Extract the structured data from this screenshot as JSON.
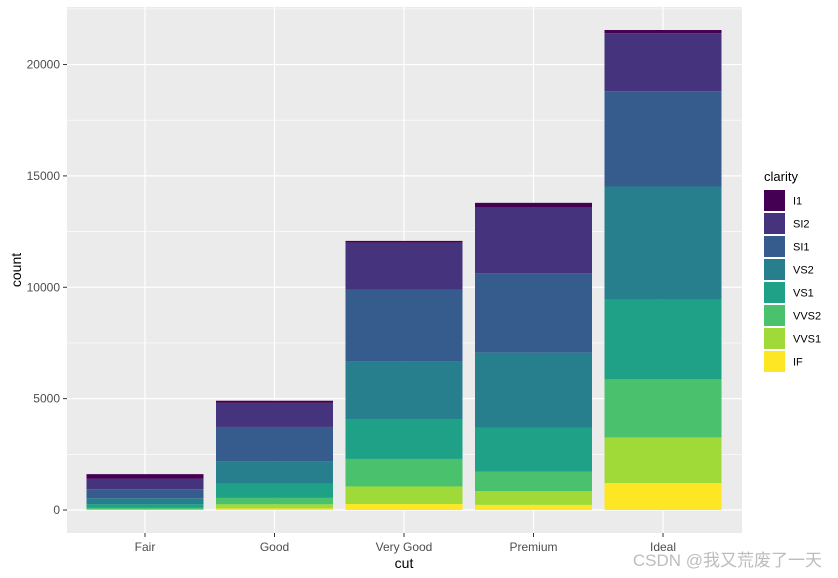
{
  "chart_data": {
    "type": "bar",
    "stacked": true,
    "title": "",
    "xlabel": "cut",
    "ylabel": "count",
    "ylim": [
      0,
      21551
    ],
    "y_ticks": [
      0,
      5000,
      10000,
      15000,
      20000
    ],
    "grid": true,
    "legend": {
      "title": "clarity",
      "placement": "right"
    },
    "categories": [
      "Fair",
      "Good",
      "Very Good",
      "Premium",
      "Ideal"
    ],
    "series": [
      {
        "name": "I1",
        "color": "#440154",
        "values": [
          210,
          96,
          84,
          205,
          146
        ]
      },
      {
        "name": "SI2",
        "color": "#46337E",
        "values": [
          466,
          1081,
          2100,
          2949,
          2598
        ]
      },
      {
        "name": "SI1",
        "color": "#365C8D",
        "values": [
          408,
          1560,
          3240,
          3575,
          4282
        ]
      },
      {
        "name": "VS2",
        "color": "#277F8E",
        "values": [
          261,
          978,
          2591,
          3357,
          5071
        ]
      },
      {
        "name": "VS1",
        "color": "#1FA187",
        "values": [
          170,
          648,
          1775,
          1989,
          3589
        ]
      },
      {
        "name": "VVS2",
        "color": "#4AC16D",
        "values": [
          69,
          286,
          1235,
          870,
          2606
        ]
      },
      {
        "name": "VVS1",
        "color": "#A0DA39",
        "values": [
          17,
          186,
          789,
          616,
          2047
        ]
      },
      {
        "name": "IF",
        "color": "#FDE725",
        "values": [
          9,
          71,
          268,
          230,
          1212
        ]
      }
    ]
  },
  "watermark": "CSDN @我又荒废了一天",
  "style": {
    "panel_bg": "#EBEBEB",
    "grid_color": "#FFFFFF"
  }
}
